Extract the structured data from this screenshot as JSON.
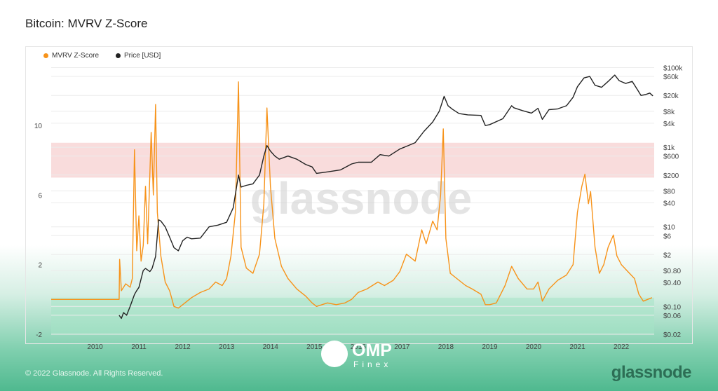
{
  "title": "Bitcoin: MVRV Z-Score",
  "legend": {
    "mvrv": {
      "label": "MVRV Z-Score",
      "color": "#f7931a"
    },
    "price": {
      "label": "Price [USD]",
      "color": "#222222"
    }
  },
  "watermark": "glassnode",
  "footer": {
    "copyright": "© 2022 Glassnode. All Rights Reserved.",
    "brand": "glassnode",
    "overlay_logo": {
      "name": "OMP",
      "sub": "Finex"
    }
  },
  "chart_data": {
    "type": "line",
    "title": "Bitcoin: MVRV Z-Score",
    "x_ticks": [
      "2010",
      "2011",
      "2012",
      "2013",
      "2014",
      "2015",
      "2016",
      "2017",
      "2018",
      "2019",
      "2020",
      "2021",
      "2022"
    ],
    "x_range": [
      2009.0,
      2022.75
    ],
    "left_axis": {
      "ticks": [
        -2,
        2,
        6,
        10
      ],
      "range": [
        -2,
        13.5
      ]
    },
    "right_axis": {
      "scale": "log",
      "ticks": [
        "$100k",
        "$60k",
        "$20k",
        "$8k",
        "$4k",
        "$1k",
        "$600",
        "$200",
        "$80",
        "$40",
        "$10",
        "$6",
        "$2",
        "$0.80",
        "$0.40",
        "$0.10",
        "$0.06",
        "$0.02"
      ],
      "range": [
        0.02,
        120000
      ]
    },
    "bands": [
      {
        "axis": "left",
        "from": 7.0,
        "to": 9.0,
        "color": "#f8d3d3"
      },
      {
        "axis": "left",
        "from": -2.0,
        "to": 0.1,
        "color": "#a6e3c7"
      }
    ],
    "grid": true,
    "legend_position": "top-left",
    "series": [
      {
        "name": "MVRV Z-Score",
        "axis": "left",
        "color": "#f7931a",
        "points": [
          [
            2009.0,
            0.0
          ],
          [
            2010.55,
            0.0
          ],
          [
            2010.56,
            2.3
          ],
          [
            2010.6,
            0.5
          ],
          [
            2010.7,
            0.9
          ],
          [
            2010.8,
            0.7
          ],
          [
            2010.85,
            1.2
          ],
          [
            2010.9,
            8.6
          ],
          [
            2010.95,
            2.8
          ],
          [
            2011.0,
            4.8
          ],
          [
            2011.05,
            2.2
          ],
          [
            2011.1,
            3.1
          ],
          [
            2011.15,
            6.5
          ],
          [
            2011.2,
            3.2
          ],
          [
            2011.28,
            9.6
          ],
          [
            2011.33,
            6.0
          ],
          [
            2011.38,
            11.2
          ],
          [
            2011.42,
            5.0
          ],
          [
            2011.5,
            2.5
          ],
          [
            2011.6,
            1.0
          ],
          [
            2011.7,
            0.5
          ],
          [
            2011.8,
            -0.4
          ],
          [
            2011.9,
            -0.5
          ],
          [
            2012.0,
            -0.3
          ],
          [
            2012.2,
            0.1
          ],
          [
            2012.4,
            0.4
          ],
          [
            2012.6,
            0.6
          ],
          [
            2012.75,
            1.0
          ],
          [
            2012.9,
            0.8
          ],
          [
            2013.0,
            1.2
          ],
          [
            2013.1,
            2.5
          ],
          [
            2013.2,
            5.0
          ],
          [
            2013.27,
            12.5
          ],
          [
            2013.33,
            3.0
          ],
          [
            2013.45,
            1.8
          ],
          [
            2013.6,
            1.5
          ],
          [
            2013.75,
            2.6
          ],
          [
            2013.85,
            5.5
          ],
          [
            2013.92,
            11.0
          ],
          [
            2014.0,
            6.5
          ],
          [
            2014.1,
            3.5
          ],
          [
            2014.25,
            1.9
          ],
          [
            2014.4,
            1.2
          ],
          [
            2014.6,
            0.6
          ],
          [
            2014.8,
            0.2
          ],
          [
            2014.95,
            -0.2
          ],
          [
            2015.05,
            -0.4
          ],
          [
            2015.3,
            -0.2
          ],
          [
            2015.5,
            -0.3
          ],
          [
            2015.7,
            -0.2
          ],
          [
            2015.85,
            0.0
          ],
          [
            2016.0,
            0.4
          ],
          [
            2016.2,
            0.6
          ],
          [
            2016.45,
            1.0
          ],
          [
            2016.6,
            0.8
          ],
          [
            2016.8,
            1.1
          ],
          [
            2016.95,
            1.6
          ],
          [
            2017.1,
            2.6
          ],
          [
            2017.3,
            2.2
          ],
          [
            2017.45,
            4.0
          ],
          [
            2017.55,
            3.2
          ],
          [
            2017.7,
            4.5
          ],
          [
            2017.8,
            4.0
          ],
          [
            2017.88,
            6.0
          ],
          [
            2017.94,
            9.8
          ],
          [
            2018.0,
            3.5
          ],
          [
            2018.1,
            1.5
          ],
          [
            2018.25,
            1.2
          ],
          [
            2018.45,
            0.8
          ],
          [
            2018.6,
            0.6
          ],
          [
            2018.8,
            0.3
          ],
          [
            2018.9,
            -0.3
          ],
          [
            2019.0,
            -0.3
          ],
          [
            2019.15,
            -0.2
          ],
          [
            2019.35,
            0.8
          ],
          [
            2019.5,
            1.9
          ],
          [
            2019.65,
            1.2
          ],
          [
            2019.85,
            0.6
          ],
          [
            2020.0,
            0.6
          ],
          [
            2020.1,
            1.0
          ],
          [
            2020.2,
            -0.1
          ],
          [
            2020.35,
            0.6
          ],
          [
            2020.55,
            1.1
          ],
          [
            2020.75,
            1.4
          ],
          [
            2020.9,
            2.0
          ],
          [
            2021.0,
            5.0
          ],
          [
            2021.1,
            6.5
          ],
          [
            2021.17,
            7.2
          ],
          [
            2021.25,
            5.5
          ],
          [
            2021.3,
            6.2
          ],
          [
            2021.4,
            3.0
          ],
          [
            2021.5,
            1.5
          ],
          [
            2021.6,
            2.0
          ],
          [
            2021.7,
            3.0
          ],
          [
            2021.82,
            3.7
          ],
          [
            2021.9,
            2.5
          ],
          [
            2022.0,
            2.0
          ],
          [
            2022.15,
            1.6
          ],
          [
            2022.3,
            1.2
          ],
          [
            2022.4,
            0.3
          ],
          [
            2022.5,
            -0.1
          ],
          [
            2022.6,
            0.0
          ],
          [
            2022.7,
            0.1
          ]
        ]
      },
      {
        "name": "Price [USD]",
        "axis": "right",
        "color": "#222222",
        "points": [
          [
            2010.55,
            0.06
          ],
          [
            2010.6,
            0.05
          ],
          [
            2010.65,
            0.07
          ],
          [
            2010.72,
            0.06
          ],
          [
            2010.8,
            0.1
          ],
          [
            2010.9,
            0.2
          ],
          [
            2010.95,
            0.25
          ],
          [
            2011.0,
            0.3
          ],
          [
            2011.1,
            0.8
          ],
          [
            2011.15,
            0.9
          ],
          [
            2011.25,
            0.75
          ],
          [
            2011.3,
            0.9
          ],
          [
            2011.38,
            1.8
          ],
          [
            2011.45,
            15
          ],
          [
            2011.5,
            14
          ],
          [
            2011.6,
            10
          ],
          [
            2011.7,
            5.5
          ],
          [
            2011.8,
            3
          ],
          [
            2011.9,
            2.5
          ],
          [
            2012.0,
            4.5
          ],
          [
            2012.1,
            5.5
          ],
          [
            2012.2,
            5
          ],
          [
            2012.4,
            5.2
          ],
          [
            2012.6,
            10
          ],
          [
            2012.8,
            11
          ],
          [
            2013.0,
            13
          ],
          [
            2013.15,
            30
          ],
          [
            2013.27,
            200
          ],
          [
            2013.33,
            100
          ],
          [
            2013.45,
            110
          ],
          [
            2013.6,
            120
          ],
          [
            2013.75,
            200
          ],
          [
            2013.85,
            600
          ],
          [
            2013.92,
            1100
          ],
          [
            2014.0,
            800
          ],
          [
            2014.1,
            600
          ],
          [
            2014.2,
            500
          ],
          [
            2014.4,
            600
          ],
          [
            2014.6,
            500
          ],
          [
            2014.8,
            370
          ],
          [
            2014.95,
            320
          ],
          [
            2015.05,
            220
          ],
          [
            2015.3,
            240
          ],
          [
            2015.6,
            270
          ],
          [
            2015.85,
            380
          ],
          [
            2016.0,
            420
          ],
          [
            2016.3,
            420
          ],
          [
            2016.5,
            650
          ],
          [
            2016.7,
            600
          ],
          [
            2016.95,
            900
          ],
          [
            2017.1,
            1050
          ],
          [
            2017.3,
            1300
          ],
          [
            2017.5,
            2500
          ],
          [
            2017.7,
            4300
          ],
          [
            2017.85,
            8000
          ],
          [
            2017.96,
            19000
          ],
          [
            2018.05,
            11000
          ],
          [
            2018.15,
            9000
          ],
          [
            2018.3,
            7000
          ],
          [
            2018.5,
            6500
          ],
          [
            2018.8,
            6300
          ],
          [
            2018.9,
            3500
          ],
          [
            2019.0,
            3700
          ],
          [
            2019.3,
            5200
          ],
          [
            2019.5,
            11000
          ],
          [
            2019.55,
            9800
          ],
          [
            2019.75,
            8300
          ],
          [
            2019.95,
            7200
          ],
          [
            2020.1,
            9500
          ],
          [
            2020.2,
            5000
          ],
          [
            2020.35,
            8800
          ],
          [
            2020.55,
            9200
          ],
          [
            2020.75,
            11000
          ],
          [
            2020.9,
            18000
          ],
          [
            2021.0,
            33000
          ],
          [
            2021.15,
            55000
          ],
          [
            2021.28,
            60000
          ],
          [
            2021.4,
            36000
          ],
          [
            2021.55,
            32000
          ],
          [
            2021.7,
            45000
          ],
          [
            2021.85,
            65000
          ],
          [
            2021.95,
            47000
          ],
          [
            2022.1,
            40000
          ],
          [
            2022.25,
            45000
          ],
          [
            2022.35,
            30000
          ],
          [
            2022.45,
            20000
          ],
          [
            2022.55,
            21000
          ],
          [
            2022.65,
            23000
          ],
          [
            2022.72,
            19500
          ]
        ]
      }
    ]
  }
}
